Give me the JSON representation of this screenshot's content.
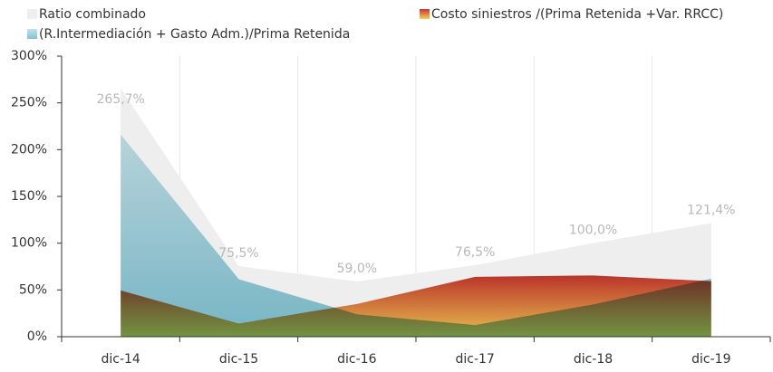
{
  "chart_data": {
    "type": "area",
    "categories": [
      "dic-14",
      "dic-15",
      "dic-16",
      "dic-17",
      "dic-18",
      "dic-19"
    ],
    "series": [
      {
        "name": "Ratio combinado",
        "color": [
          "#eeeeee",
          "#eeeeee"
        ],
        "values": [
          265.7,
          75.5,
          59.0,
          76.5,
          100.0,
          121.4
        ],
        "value_labels": [
          "265,7%",
          "75,5%",
          "59,0%",
          "76,5%",
          "100,0%",
          "121,4%"
        ]
      },
      {
        "name": "Costo siniestros /(Prima Retenida +Var. RRCC)",
        "color": [
          "#c8372d",
          "#f7cf55"
        ],
        "values": [
          49.5,
          14,
          35,
          64,
          65.5,
          59.4
        ]
      },
      {
        "name": "(R.Intermediación + Gasto Adm.)/Prima Retenida",
        "color": [
          "#c4e2ea",
          "#7fc3d3"
        ],
        "values": [
          216.2,
          61.5,
          24,
          12.5,
          34.5,
          62
        ]
      }
    ],
    "ylim": [
      0,
      300
    ],
    "yticks": [
      {
        "value": 0,
        "label": "0%"
      },
      {
        "value": 50,
        "label": "50%"
      },
      {
        "value": 100,
        "label": "100%"
      },
      {
        "value": 150,
        "label": "150%"
      },
      {
        "value": 200,
        "label": "200%"
      },
      {
        "value": 250,
        "label": "250%"
      },
      {
        "value": 300,
        "label": "300%"
      }
    ],
    "grid": true
  }
}
